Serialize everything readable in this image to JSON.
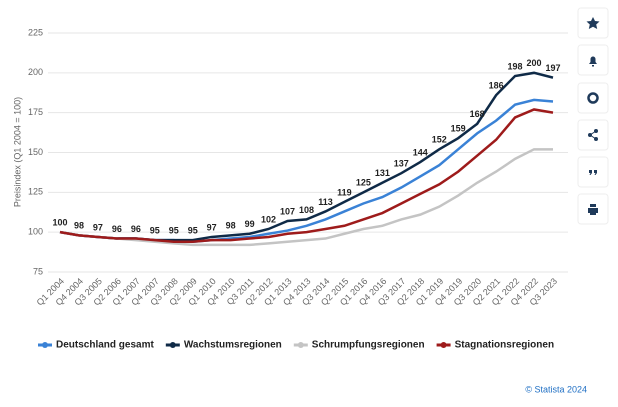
{
  "chart_data": {
    "type": "line",
    "y_label": "Preisindex (Q1 2004 = 100)",
    "categories": [
      "Q1 2004",
      "Q4 2004",
      "Q3 2005",
      "Q2 2006",
      "Q1 2007",
      "Q4 2007",
      "Q3 2008",
      "Q2 2009",
      "Q1 2010",
      "Q4 2010",
      "Q3 2011",
      "Q2 2012",
      "Q1 2013",
      "Q4 2013",
      "Q3 2014",
      "Q2 2015",
      "Q1 2016",
      "Q4 2016",
      "Q3 2017",
      "Q2 2018",
      "Q1 2019",
      "Q4 2019",
      "Q3 2020",
      "Q2 2021",
      "Q1 2022",
      "Q4 2022",
      "Q3 2023"
    ],
    "series": [
      {
        "name": "Deutschland gesamt",
        "color": "#3a82d6",
        "labels": false,
        "values": [
          100,
          98,
          97,
          96,
          96,
          95,
          95,
          94,
          95,
          96,
          97,
          99,
          101,
          104,
          108,
          113,
          118,
          122,
          128,
          135,
          142,
          152,
          162,
          170,
          180,
          183,
          182
        ]
      },
      {
        "name": "Wachstumsregionen",
        "color": "#0f2a47",
        "labels": true,
        "values": [
          100,
          98,
          97,
          96,
          96,
          95,
          95,
          95,
          97,
          98,
          99,
          102,
          107,
          108,
          113,
          119,
          125,
          131,
          137,
          144,
          152,
          159,
          168,
          186,
          198,
          200,
          197
        ]
      },
      {
        "name": "Schrumpfungsregionen",
        "color": "#c4c4c4",
        "labels": false,
        "values": [
          100,
          98,
          97,
          96,
          95,
          94,
          93,
          92,
          92,
          92,
          92,
          93,
          94,
          95,
          96,
          99,
          102,
          104,
          108,
          111,
          116,
          123,
          131,
          138,
          146,
          152,
          152
        ]
      },
      {
        "name": "Stagnationsregionen",
        "color": "#9e1b1b",
        "labels": false,
        "values": [
          100,
          98,
          97,
          96,
          96,
          95,
          94,
          94,
          95,
          95,
          96,
          97,
          99,
          100,
          102,
          104,
          108,
          112,
          118,
          124,
          130,
          138,
          148,
          158,
          172,
          177,
          175
        ]
      }
    ],
    "ylim": [
      75,
      225
    ],
    "yticks": [
      75,
      100,
      125,
      150,
      175,
      200,
      225
    ],
    "grid": true,
    "source": "© Statista 2024"
  }
}
